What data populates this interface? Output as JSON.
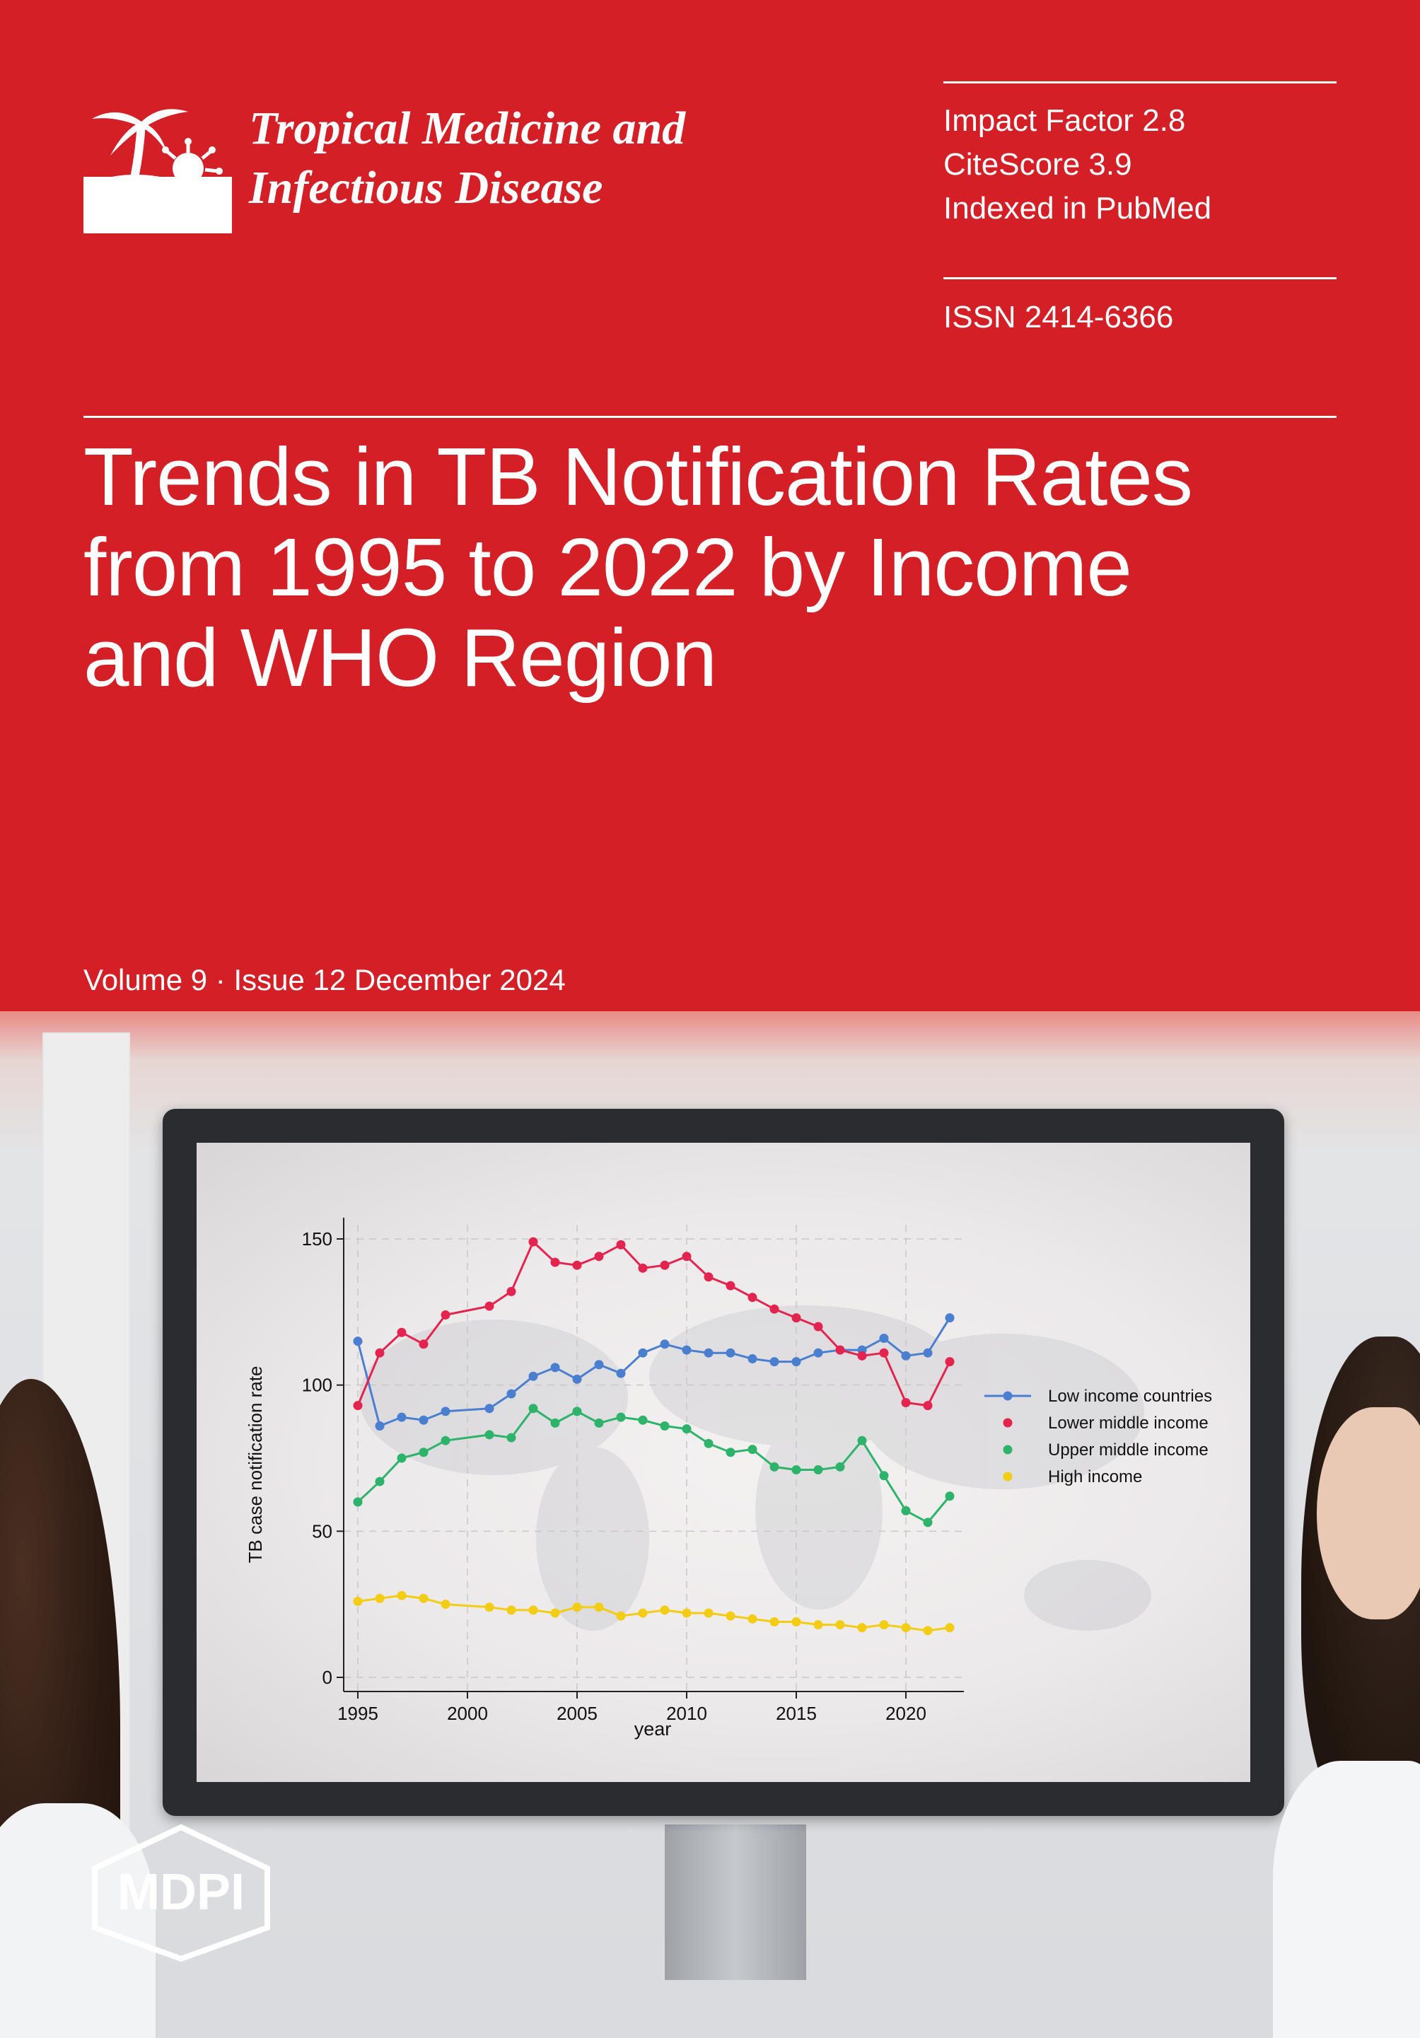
{
  "journal": {
    "name_line1": "Tropical Medicine and",
    "name_line2": "Infectious Disease",
    "logo_icon": "palm-tree-virus-icon"
  },
  "metrics": {
    "impact_factor": "Impact Factor 2.8",
    "citescore": "CiteScore 3.9",
    "indexed": "Indexed in PubMed",
    "issn": "ISSN 2414-6366"
  },
  "article": {
    "title_line1": "Trends in TB Notification Rates",
    "title_line2": "from 1995 to 2022 by Income",
    "title_line3": "and WHO Region"
  },
  "issue": {
    "volume_line": "Volume 9 · Issue 12 December 2024"
  },
  "publisher": {
    "name": "MDPI"
  },
  "colors": {
    "cover_red": "#d51f26",
    "low_income": "#4a7fd0",
    "lower_middle": "#e3244e",
    "upper_middle": "#2db36a",
    "high_income": "#f3cc14"
  },
  "chart_data": {
    "type": "line",
    "title": "",
    "xlabel": "year",
    "ylabel": "TB case notification rate",
    "xlim": [
      1995,
      2022
    ],
    "ylim": [
      0,
      150
    ],
    "x_ticks": [
      1995,
      2000,
      2005,
      2010,
      2015,
      2020
    ],
    "y_ticks": [
      0,
      50,
      100,
      150
    ],
    "grid": true,
    "legend_position": "right",
    "x": [
      1995,
      1996,
      1997,
      1998,
      1999,
      2001,
      2002,
      2003,
      2004,
      2005,
      2006,
      2007,
      2008,
      2009,
      2010,
      2011,
      2012,
      2013,
      2014,
      2015,
      2016,
      2017,
      2018,
      2019,
      2020,
      2021,
      2022
    ],
    "series": [
      {
        "name": "Low income countries",
        "color": "#4a7fd0",
        "values": [
          115,
          86,
          89,
          88,
          91,
          92,
          97,
          103,
          106,
          102,
          107,
          104,
          111,
          114,
          112,
          111,
          111,
          109,
          108,
          108,
          111,
          112,
          112,
          116,
          110,
          111,
          123
        ]
      },
      {
        "name": "Lower middle income",
        "color": "#e3244e",
        "values": [
          93,
          111,
          118,
          114,
          124,
          127,
          132,
          149,
          142,
          141,
          144,
          148,
          140,
          141,
          144,
          137,
          134,
          130,
          126,
          123,
          120,
          112,
          110,
          111,
          94,
          93,
          108
        ]
      },
      {
        "name": "Upper middle income",
        "color": "#2db36a",
        "values": [
          60,
          67,
          75,
          77,
          81,
          83,
          82,
          92,
          87,
          91,
          87,
          89,
          88,
          86,
          85,
          80,
          77,
          78,
          72,
          71,
          71,
          72,
          81,
          69,
          57,
          53,
          62
        ]
      },
      {
        "name": "High income",
        "color": "#f3cc14",
        "values": [
          26,
          27,
          28,
          27,
          25,
          24,
          23,
          23,
          22,
          24,
          24,
          21,
          22,
          23,
          22,
          22,
          21,
          20,
          19,
          19,
          18,
          18,
          17,
          18,
          17,
          16,
          17
        ]
      }
    ]
  }
}
